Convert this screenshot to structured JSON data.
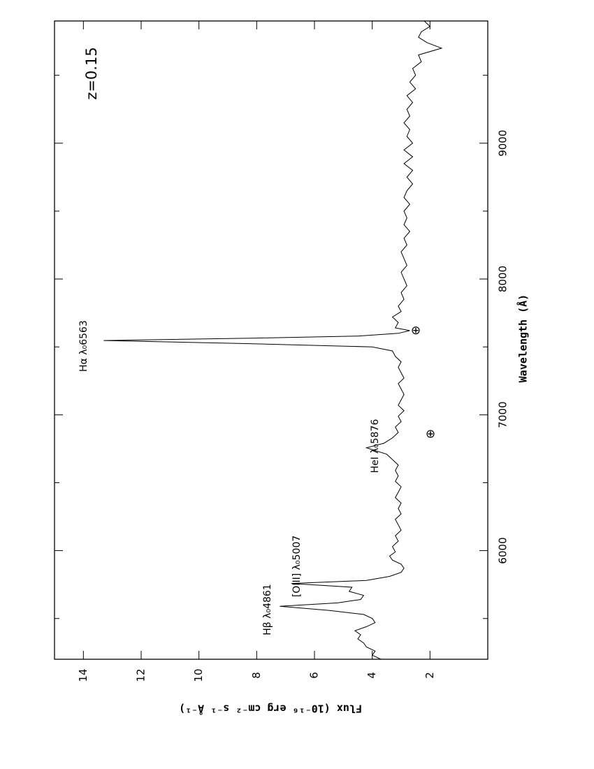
{
  "chart_data": {
    "type": "line",
    "xlabel": "Wavelength (Å)",
    "ylabel": "Flux (10⁻¹⁶ erg cm⁻² s⁻¹ Å⁻¹)",
    "xlim": [
      5200,
      9900
    ],
    "xticks": [
      6000,
      7000,
      8000,
      9000
    ],
    "xminorticks": [
      5500,
      6500,
      7500,
      8500,
      9500
    ],
    "ylim": [
      0,
      15
    ],
    "yticks": [
      2,
      4,
      6,
      8,
      10,
      12,
      14
    ],
    "annotations": [
      "z=0.15",
      "Hα λ₀6563",
      "Hβ λ₀4861",
      "[OIII] λ₀5007",
      "HeI λ₀5876",
      "⊕",
      "⊕"
    ],
    "x": [
      5200,
      5230,
      5260,
      5290,
      5320,
      5350,
      5380,
      5410,
      5440,
      5470,
      5500,
      5530,
      5560,
      5590,
      5615,
      5640,
      5670,
      5700,
      5730,
      5758,
      5780,
      5810,
      5840,
      5870,
      5900,
      5930,
      5960,
      5990,
      6030,
      6070,
      6110,
      6150,
      6190,
      6230,
      6270,
      6310,
      6350,
      6390,
      6430,
      6470,
      6510,
      6550,
      6590,
      6630,
      6670,
      6710,
      6757,
      6790,
      6830,
      6870,
      6910,
      6950,
      6990,
      7030,
      7070,
      7110,
      7150,
      7190,
      7230,
      7270,
      7310,
      7350,
      7390,
      7430,
      7470,
      7500,
      7525,
      7547,
      7565,
      7580,
      7600,
      7620,
      7640,
      7680,
      7720,
      7760,
      7800,
      7850,
      7900,
      7950,
      8000,
      8050,
      8100,
      8150,
      8200,
      8250,
      8300,
      8350,
      8400,
      8450,
      8500,
      8550,
      8600,
      8650,
      8700,
      8750,
      8800,
      8850,
      8900,
      8950,
      9000,
      9050,
      9100,
      9150,
      9200,
      9250,
      9300,
      9350,
      9400,
      9450,
      9500,
      9550,
      9600,
      9650,
      9700,
      9740,
      9780,
      9820,
      9860,
      9900
    ],
    "series": [
      {
        "color": "#000000",
        "values": [
          3.7,
          4.0,
          3.9,
          4.2,
          4.3,
          4.5,
          4.4,
          4.6,
          4.2,
          3.9,
          4.0,
          4.3,
          5.5,
          7.2,
          5.2,
          4.4,
          4.3,
          4.8,
          4.7,
          6.8,
          4.2,
          3.4,
          3.0,
          2.9,
          3.0,
          3.3,
          3.4,
          3.2,
          3.3,
          3.1,
          3.2,
          3.0,
          3.1,
          3.2,
          3.0,
          3.1,
          3.0,
          3.2,
          3.1,
          3.0,
          3.2,
          3.1,
          3.2,
          3.1,
          3.3,
          3.5,
          4.2,
          3.6,
          3.3,
          3.1,
          3.2,
          3.0,
          3.1,
          2.9,
          3.1,
          3.0,
          2.9,
          3.0,
          3.1,
          2.9,
          3.0,
          3.1,
          3.0,
          3.2,
          3.3,
          4.0,
          8.5,
          13.3,
          8.0,
          4.5,
          3.1,
          2.7,
          3.2,
          3.1,
          3.3,
          3.0,
          3.1,
          2.9,
          3.0,
          2.8,
          2.9,
          3.0,
          2.8,
          2.9,
          3.0,
          2.8,
          2.9,
          2.7,
          2.9,
          2.8,
          2.9,
          2.7,
          2.9,
          2.8,
          2.6,
          2.8,
          2.6,
          2.9,
          2.6,
          2.9,
          2.6,
          2.8,
          2.7,
          2.9,
          2.7,
          2.8,
          2.6,
          2.8,
          2.5,
          2.7,
          2.5,
          2.6,
          2.3,
          2.4,
          1.6,
          2.1,
          2.4,
          2.3,
          2.0,
          2.2
        ]
      }
    ]
  }
}
